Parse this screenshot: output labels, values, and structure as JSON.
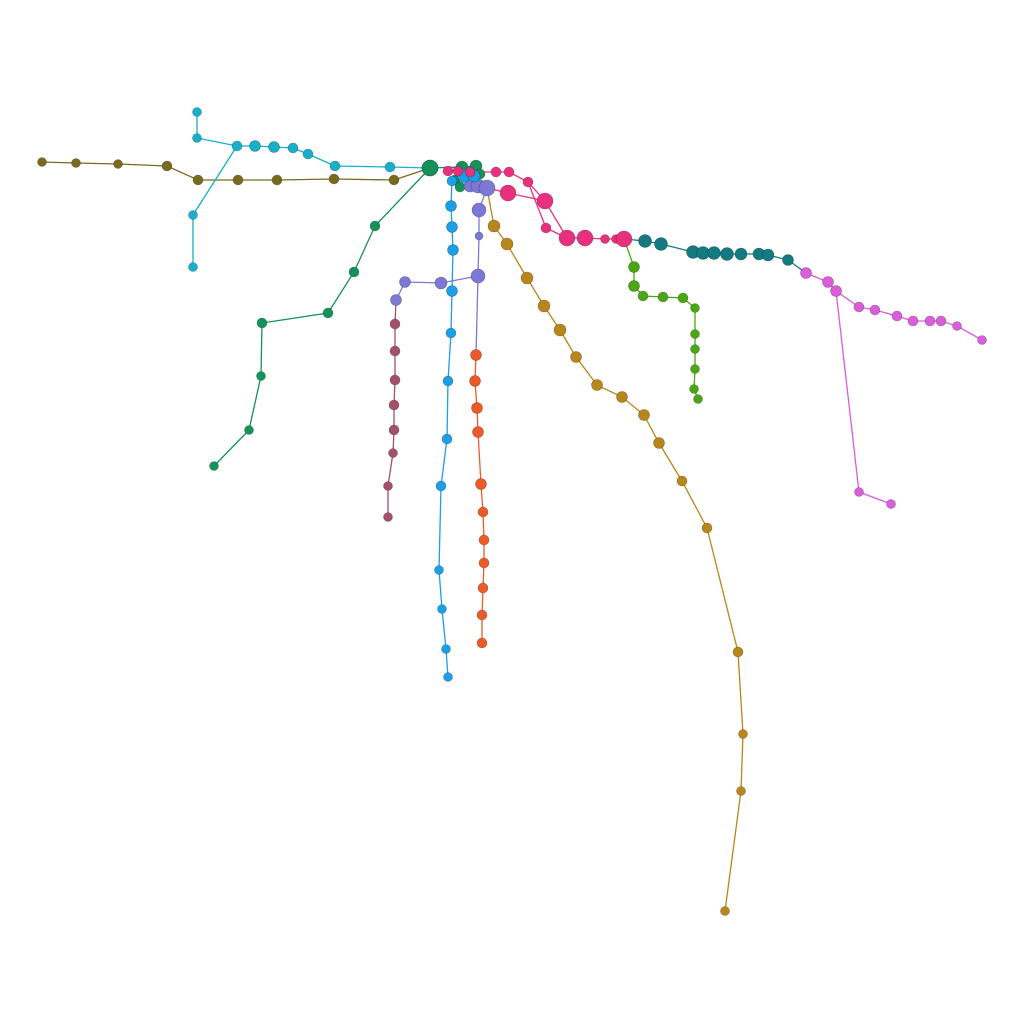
{
  "diagram": {
    "type": "network",
    "background": "#ffffff",
    "lines": [
      {
        "id": "olive",
        "color": "#7a6a1f"
      },
      {
        "id": "cyan",
        "color": "#17afc9"
      },
      {
        "id": "forest-green",
        "color": "#14925a"
      },
      {
        "id": "purple",
        "color": "#7b78d6"
      },
      {
        "id": "maroon",
        "color": "#a3506a"
      },
      {
        "id": "blue",
        "color": "#1b9fe6"
      },
      {
        "id": "orange-red",
        "color": "#ec5a2a"
      },
      {
        "id": "golden",
        "color": "#b8861a"
      },
      {
        "id": "pink",
        "color": "#e8307e"
      },
      {
        "id": "teal",
        "color": "#137a82"
      },
      {
        "id": "lime-green",
        "color": "#4aa612"
      },
      {
        "id": "violet",
        "color": "#db5ddc"
      }
    ]
  }
}
